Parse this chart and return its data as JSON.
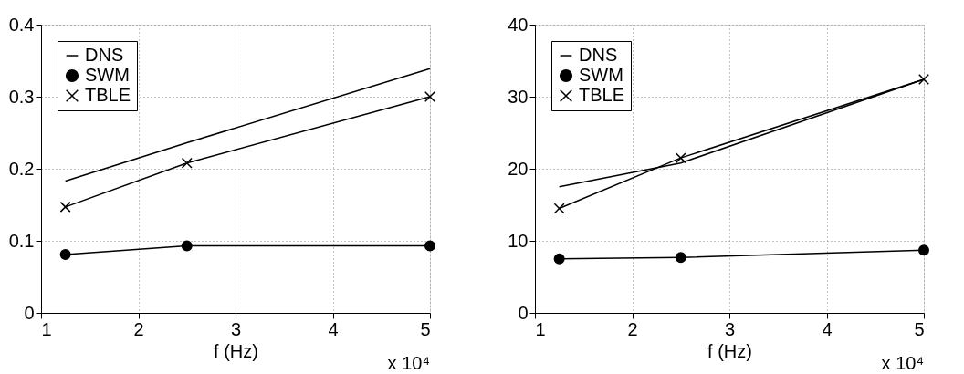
{
  "chart_data": [
    {
      "type": "line",
      "xlabel": "f (Hz)",
      "x": [
        1.25,
        2.5,
        5
      ],
      "xlim": [
        1,
        5
      ],
      "xticks": [
        1,
        2,
        3,
        4,
        5
      ],
      "ylim": [
        0,
        0.4
      ],
      "yticks": [
        0,
        0.1,
        0.2,
        0.3,
        0.4
      ],
      "grid": true,
      "legend": "top left",
      "line_style": "solid",
      "annotations": [
        "x 10⁴"
      ],
      "series": [
        {
          "name": "DNS",
          "color": "#000000",
          "marker": "none",
          "values": [
            0.183,
            0.236,
            0.339
          ]
        },
        {
          "name": "SWM",
          "color": "#000000",
          "marker": "circle",
          "values": [
            0.081,
            0.093,
            0.093
          ]
        },
        {
          "name": "TBLE",
          "color": "#000000",
          "marker": "cross",
          "values": [
            0.147,
            0.208,
            0.3
          ]
        }
      ]
    },
    {
      "type": "line",
      "xlabel": "f (Hz)",
      "x": [
        1.25,
        2.5,
        5
      ],
      "xlim": [
        1,
        5
      ],
      "xticks": [
        1,
        2,
        3,
        4,
        5
      ],
      "ylim": [
        0,
        40
      ],
      "yticks": [
        0,
        10,
        20,
        30,
        40
      ],
      "grid": true,
      "legend": "top left",
      "line_style": "solid",
      "annotations": [
        "x 10⁴"
      ],
      "series": [
        {
          "name": "DNS",
          "color": "#000000",
          "marker": "none",
          "values": [
            17.5,
            20.8,
            32.4
          ]
        },
        {
          "name": "SWM",
          "color": "#000000",
          "marker": "circle",
          "values": [
            7.5,
            7.7,
            8.7
          ]
        },
        {
          "name": "TBLE",
          "color": "#000000",
          "marker": "cross",
          "values": [
            14.5,
            21.5,
            32.4
          ]
        }
      ]
    }
  ]
}
